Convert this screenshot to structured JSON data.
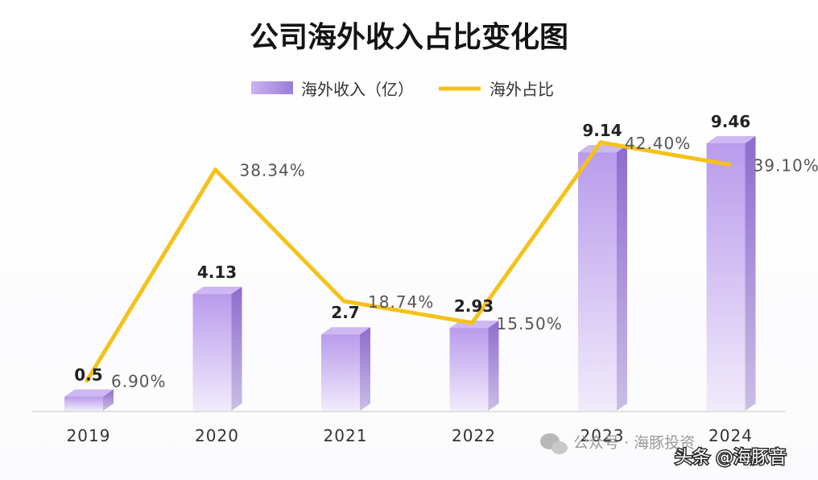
{
  "chart_data": {
    "type": "bar",
    "title": "公司海外收入占比变化图",
    "categories": [
      "2019",
      "2020",
      "2021",
      "2022",
      "2023",
      "2024"
    ],
    "series": [
      {
        "name": "海外收入（亿）",
        "kind": "bar",
        "values": [
          0.5,
          4.13,
          2.7,
          2.93,
          9.14,
          9.46
        ],
        "labels": [
          "0.5",
          "4.13",
          "2.7",
          "2.93",
          "9.14",
          "9.46"
        ],
        "color": "#b79de8"
      },
      {
        "name": "海外占比",
        "kind": "line",
        "values": [
          6.9,
          38.34,
          18.74,
          15.5,
          42.4,
          39.1
        ],
        "labels": [
          "6.90%",
          "38.34%",
          "18.74%",
          "15.50%",
          "42.40%",
          "39.10%"
        ],
        "color": "#f5c21b"
      }
    ],
    "legend": "top-center",
    "grid": false,
    "xlabel": "",
    "ylabel": "",
    "ylim_bar": [
      0,
      10
    ],
    "ylim_line": [
      0,
      45
    ]
  },
  "watermark": {
    "account_text": "公众号 · 海豚投资",
    "author_text": "头条 @海豚音"
  }
}
